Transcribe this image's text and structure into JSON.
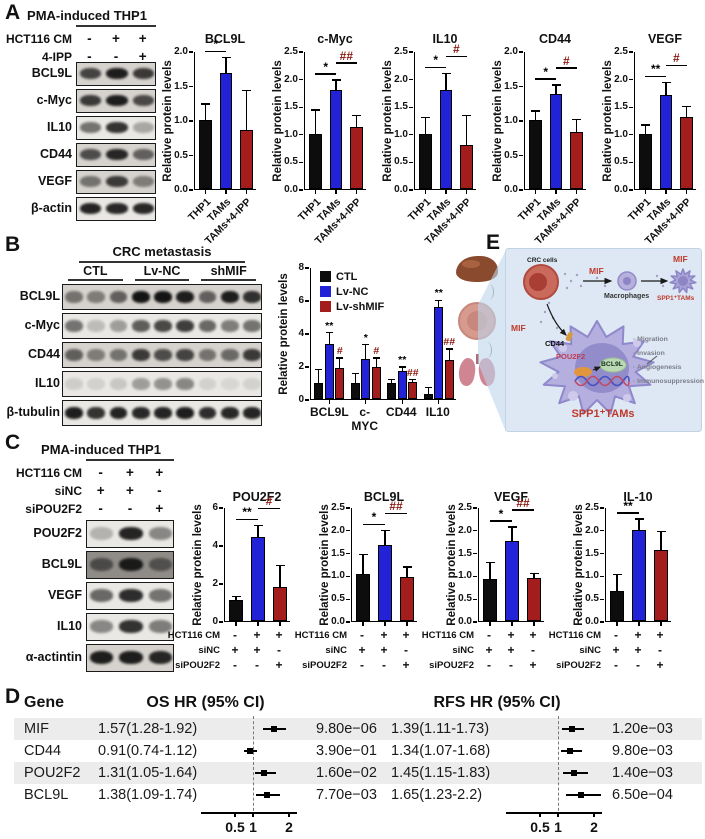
{
  "figure": {
    "panel_labels": {
      "a": "A",
      "b": "B",
      "c": "C",
      "d": "D",
      "e": "E"
    }
  },
  "colors": {
    "bar_black": "#0d0d0d",
    "bar_blue": "#2222d6",
    "bar_dark_red": "#a31d1d",
    "sig_hash": "#8a1a12",
    "diagram_red": "#c0392b"
  },
  "panelA": {
    "blot": {
      "title": "PMA-induced THP1",
      "conditions": [
        {
          "label": "HCT116 CM",
          "symbols": [
            "-",
            "+",
            "+"
          ]
        },
        {
          "label": "4-IPP",
          "symbols": [
            "-",
            "-",
            "+"
          ]
        }
      ],
      "rows": [
        {
          "label": "BCL9L",
          "tone": "mid",
          "lanes": [
            0.75,
            0.95,
            0.8
          ]
        },
        {
          "label": "c-Myc",
          "tone": "mid",
          "lanes": [
            0.8,
            0.95,
            0.72
          ]
        },
        {
          "label": "IL10",
          "tone": "light",
          "lanes": [
            0.55,
            0.85,
            0.3
          ]
        },
        {
          "label": "CD44",
          "tone": "mid",
          "lanes": [
            0.7,
            0.9,
            0.6
          ]
        },
        {
          "label": "VEGF",
          "tone": "mid",
          "lanes": [
            0.5,
            0.8,
            0.45
          ]
        },
        {
          "label": "β-actin",
          "tone": "light",
          "lanes": [
            0.92,
            0.9,
            0.9
          ]
        }
      ]
    }
  },
  "panelB": {
    "blot": {
      "title": "CRC metastasis",
      "groups": [
        "CTL",
        "Lv-NC",
        "shMIF"
      ],
      "rows": [
        {
          "label": "BCL9L",
          "tone": "mid",
          "lanes": [
            0.5,
            0.45,
            0.6,
            1,
            1,
            0.95,
            0.6,
            0.95,
            0.85
          ]
        },
        {
          "label": "c-Myc",
          "tone": "light",
          "lanes": [
            0.55,
            0.2,
            0.35,
            0.65,
            0.75,
            0.8,
            0.6,
            0.5,
            0.55
          ]
        },
        {
          "label": "CD44",
          "tone": "mid",
          "lanes": [
            0.6,
            0.45,
            0.5,
            0.8,
            0.7,
            0.75,
            0.5,
            0.55,
            0.8
          ]
        },
        {
          "label": "IL10",
          "tone": "light",
          "lanes": [
            0.12,
            0.1,
            0.15,
            0.35,
            0.4,
            0.45,
            0.1,
            0.08,
            0.1
          ]
        },
        {
          "label": "β-tubulin",
          "tone": "light",
          "lanes": [
            0.95,
            0.85,
            0.92,
            0.9,
            0.92,
            0.95,
            0.88,
            0.9,
            0.92
          ]
        }
      ]
    }
  },
  "panelC": {
    "blot": {
      "title": "PMA-induced THP1",
      "conditions": [
        {
          "label": "HCT116 CM",
          "symbols": [
            "-",
            "+",
            "+"
          ]
        },
        {
          "label": "siNC",
          "symbols": [
            "+",
            "+",
            "-"
          ]
        },
        {
          "label": "siPOU2F2",
          "symbols": [
            "-",
            "-",
            "+"
          ]
        }
      ],
      "rows": [
        {
          "label": "POU2F2",
          "tone": "light",
          "lanes": [
            0.25,
            0.92,
            0.45
          ]
        },
        {
          "label": "BCL9L",
          "tone": "dark",
          "lanes": [
            0.55,
            0.95,
            0.5
          ]
        },
        {
          "label": "VEGF",
          "tone": "light",
          "lanes": [
            0.6,
            0.88,
            0.55
          ]
        },
        {
          "label": "IL10",
          "tone": "light",
          "lanes": [
            0.45,
            0.85,
            0.5
          ]
        },
        {
          "label": "α-actintin",
          "tone": "mid",
          "lanes": [
            0.95,
            0.95,
            0.9
          ]
        }
      ]
    },
    "xtable": {
      "labels": [
        "HCT116 CM",
        "siNC",
        "siPOU2F2"
      ],
      "rows": [
        [
          "-",
          "+",
          "+"
        ],
        [
          "+",
          "+",
          "-"
        ],
        [
          "-",
          "-",
          "+"
        ]
      ]
    }
  },
  "panelD": {
    "gene_header": "Gene",
    "os_header": "OS HR (95% CI)",
    "rfs_header": "RFS HR (95% CI)",
    "axis_ticks": [
      "0.5",
      "1",
      "2"
    ],
    "rows": [
      {
        "gene": "MIF",
        "os": {
          "text": "1.57(1.28-1.92)",
          "hr": 1.57,
          "lo": 1.28,
          "hi": 1.92,
          "p": "9.80e−06"
        },
        "rfs": {
          "text": "1.39(1.11-1.73)",
          "hr": 1.39,
          "lo": 1.11,
          "hi": 1.73,
          "p": "1.20e−03"
        }
      },
      {
        "gene": "CD44",
        "os": {
          "text": "0.91(0.74-1.12)",
          "hr": 0.91,
          "lo": 0.74,
          "hi": 1.12,
          "p": "3.90e−01"
        },
        "rfs": {
          "text": "1.34(1.07-1.68)",
          "hr": 1.34,
          "lo": 1.07,
          "hi": 1.68,
          "p": "9.80e−03"
        }
      },
      {
        "gene": "POU2F2",
        "os": {
          "text": "1.31(1.05-1.64)",
          "hr": 1.31,
          "lo": 1.05,
          "hi": 1.64,
          "p": "1.60e−02"
        },
        "rfs": {
          "text": "1.45(1.15-1.83)",
          "hr": 1.45,
          "lo": 1.15,
          "hi": 1.83,
          "p": "1.40e−03"
        }
      },
      {
        "gene": "BCL9L",
        "os": {
          "text": "1.38(1.09-1.74)",
          "hr": 1.38,
          "lo": 1.09,
          "hi": 1.74,
          "p": "7.70e−03"
        },
        "rfs": {
          "text": "1.65(1.23-2.2)",
          "hr": 1.65,
          "lo": 1.23,
          "hi": 2.2,
          "p": "6.50e−04"
        }
      }
    ]
  },
  "panelE": {
    "labels": {
      "crc_cells": "CRC cells",
      "mif_top": "MIF",
      "macrophages": "Macrophages",
      "mif_right": "MIF",
      "spp1_tams_small": "SPP1⁺TAMs",
      "mif_left": "MIF",
      "cd44": "CD44",
      "pou2f2": "POU2F2",
      "bcl9l": "BCL9L",
      "spp1_tams": "SPP1⁺TAMs"
    },
    "outcomes": [
      "Migration",
      "Invasion",
      "Angiogenesis",
      "Immunosuppression"
    ]
  },
  "chart_data": [
    {
      "type": "bar",
      "title": "BCL9L",
      "ylabel": "Relative protein levels",
      "categories": [
        "THP1",
        "TAMs",
        "TAMs+4-IPP"
      ],
      "values": [
        1.0,
        1.68,
        0.85
      ],
      "errors": [
        0.22,
        0.22,
        0.57
      ],
      "bar_colors": [
        "#0d0d0d",
        "#2222d6",
        "#a31d1d"
      ],
      "ylim": [
        0,
        2.0
      ],
      "yticks": [
        "0.0",
        "0.5",
        "1.0",
        "1.5",
        "2.0"
      ],
      "sig": [
        {
          "a": 0,
          "b": 1,
          "label": "*"
        }
      ]
    },
    {
      "type": "bar",
      "title": "c-Myc",
      "ylabel": "Relative protein levels",
      "categories": [
        "THP1",
        "TAMs",
        "TAMs+4-IPP"
      ],
      "values": [
        1.0,
        1.8,
        1.12
      ],
      "errors": [
        0.42,
        0.16,
        0.2
      ],
      "bar_colors": [
        "#0d0d0d",
        "#2222d6",
        "#a31d1d"
      ],
      "ylim": [
        0,
        2.5
      ],
      "yticks": [
        "0.0",
        "0.5",
        "1.0",
        "1.5",
        "2.0",
        "2.5"
      ],
      "sig": [
        {
          "a": 0,
          "b": 1,
          "label": "*"
        },
        {
          "a": 1,
          "b": 2,
          "label": "##"
        }
      ]
    },
    {
      "type": "bar",
      "title": "IL10",
      "ylabel": "Relative protein levels",
      "categories": [
        "THP1",
        "TAMs",
        "TAMs+4-IPP"
      ],
      "values": [
        1.0,
        1.8,
        0.8
      ],
      "errors": [
        0.28,
        0.28,
        0.52
      ],
      "bar_colors": [
        "#0d0d0d",
        "#2222d6",
        "#a31d1d"
      ],
      "ylim": [
        0,
        2.5
      ],
      "yticks": [
        "0.0",
        "0.5",
        "1.0",
        "1.5",
        "2.0",
        "2.5"
      ],
      "sig": [
        {
          "a": 0,
          "b": 1,
          "label": "*"
        },
        {
          "a": 1,
          "b": 2,
          "label": "#"
        }
      ]
    },
    {
      "type": "bar",
      "title": "CD44",
      "ylabel": "Relative protein levels",
      "categories": [
        "THP1",
        "TAMs",
        "TAMs+4-IPP"
      ],
      "values": [
        1.0,
        1.38,
        0.82
      ],
      "errors": [
        0.12,
        0.12,
        0.18
      ],
      "bar_colors": [
        "#0d0d0d",
        "#2222d6",
        "#a31d1d"
      ],
      "ylim": [
        0,
        2.0
      ],
      "yticks": [
        "0.0",
        "0.5",
        "1.0",
        "1.5",
        "2.0"
      ],
      "sig": [
        {
          "a": 0,
          "b": 1,
          "label": "*"
        },
        {
          "a": 1,
          "b": 2,
          "label": "#"
        }
      ]
    },
    {
      "type": "bar",
      "title": "VEGF",
      "ylabel": "Relative protein levels",
      "categories": [
        "THP1",
        "TAMs",
        "TAMs+4-IPP"
      ],
      "values": [
        1.0,
        1.7,
        1.3
      ],
      "errors": [
        0.15,
        0.22,
        0.18
      ],
      "bar_colors": [
        "#0d0d0d",
        "#2222d6",
        "#a31d1d"
      ],
      "ylim": [
        0,
        2.5
      ],
      "yticks": [
        "0.0",
        "0.5",
        "1.0",
        "1.5",
        "2.0",
        "2.5"
      ],
      "sig": [
        {
          "a": 0,
          "b": 1,
          "label": "**"
        },
        {
          "a": 1,
          "b": 2,
          "label": "#"
        }
      ]
    },
    {
      "type": "bar",
      "title": "",
      "ylabel": "Relative protein levels",
      "categories": [
        "BCL9L",
        "c-MYC",
        "CD44",
        "IL10"
      ],
      "series": [
        {
          "name": "CTL",
          "color": "#0d0d0d",
          "values": [
            1.0,
            1.0,
            1.0,
            0.3
          ],
          "errors": [
            0.75,
            0.5,
            0.15,
            0.35
          ],
          "sig": [
            null,
            null,
            null,
            null
          ]
        },
        {
          "name": "Lv-NC",
          "color": "#2222d6",
          "values": [
            3.35,
            2.4,
            1.7,
            5.6
          ],
          "errors": [
            0.65,
            0.85,
            0.2,
            0.35
          ],
          "sig": [
            "**",
            "*",
            "**",
            "**"
          ]
        },
        {
          "name": "Lv-shMIF",
          "color": "#a31d1d",
          "values": [
            1.9,
            1.95,
            1.05,
            2.35
          ],
          "errors": [
            0.55,
            0.5,
            0.1,
            0.65
          ],
          "sig": [
            "#",
            "#",
            "##",
            "##"
          ]
        }
      ],
      "ylim": [
        0,
        8
      ],
      "yticks": [
        "0",
        "2",
        "4",
        "6",
        "8"
      ],
      "legend": true
    },
    {
      "type": "bar",
      "title": "POU2F2",
      "ylabel": "Relative protein levels",
      "values": [
        1.1,
        4.4,
        1.8
      ],
      "errors": [
        0.15,
        0.6,
        1.1
      ],
      "bar_colors": [
        "#0d0d0d",
        "#2222d6",
        "#a31d1d"
      ],
      "ylim": [
        0,
        6
      ],
      "yticks": [
        "0",
        "2",
        "4",
        "6"
      ],
      "sig": [
        {
          "a": 0,
          "b": 1,
          "label": "**"
        },
        {
          "a": 1,
          "b": 2,
          "label": "#"
        }
      ],
      "xtable": true
    },
    {
      "type": "bar",
      "title": "BCL9L",
      "ylabel": "Relative protein levels",
      "values": [
        1.03,
        1.67,
        0.97
      ],
      "errors": [
        0.42,
        0.3,
        0.2
      ],
      "bar_colors": [
        "#0d0d0d",
        "#2222d6",
        "#a31d1d"
      ],
      "ylim": [
        0,
        2.5
      ],
      "yticks": [
        "0.0",
        "0.5",
        "1.0",
        "1.5",
        "2.0",
        "2.5"
      ],
      "sig": [
        {
          "a": 0,
          "b": 1,
          "label": "*"
        },
        {
          "a": 1,
          "b": 2,
          "label": "##"
        }
      ],
      "xtable": true
    },
    {
      "type": "bar",
      "title": "VEGF",
      "ylabel": "Relative protein levels",
      "values": [
        0.92,
        1.75,
        0.95
      ],
      "errors": [
        0.35,
        0.3,
        0.08
      ],
      "bar_colors": [
        "#0d0d0d",
        "#2222d6",
        "#a31d1d"
      ],
      "ylim": [
        0,
        2.5
      ],
      "yticks": [
        "0.0",
        "0.5",
        "1.0",
        "1.5",
        "2.0",
        "2.5"
      ],
      "sig": [
        {
          "a": 0,
          "b": 1,
          "label": "*"
        },
        {
          "a": 1,
          "b": 2,
          "label": "##"
        }
      ],
      "xtable": true
    },
    {
      "type": "bar",
      "title": "IL-10",
      "ylabel": "Relative protein levels",
      "values": [
        0.65,
        2.0,
        1.55
      ],
      "errors": [
        0.35,
        0.22,
        0.4
      ],
      "bar_colors": [
        "#0d0d0d",
        "#2222d6",
        "#a31d1d"
      ],
      "ylim": [
        0,
        2.5
      ],
      "yticks": [
        "0.0",
        "0.5",
        "1.0",
        "1.5",
        "2.0",
        "2.5"
      ],
      "sig": [
        {
          "a": 0,
          "b": 1,
          "label": "**"
        }
      ],
      "xtable": true
    }
  ]
}
